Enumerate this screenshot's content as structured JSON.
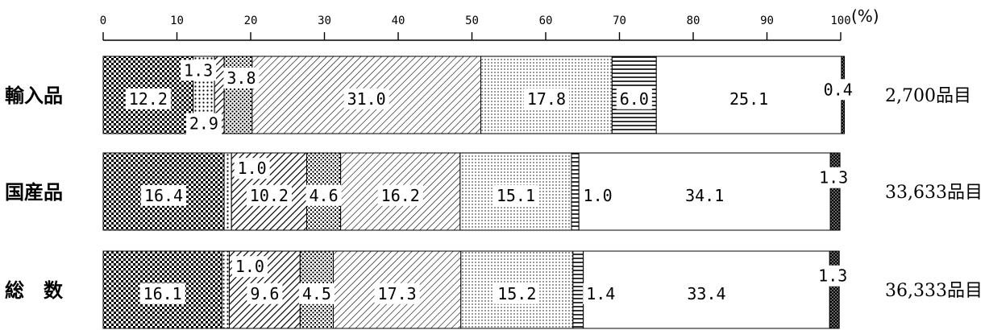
{
  "chart_data": {
    "type": "bar",
    "orientation": "horizontal",
    "stacked": true,
    "xlim": [
      0,
      100
    ],
    "x_ticks": [
      "0",
      "10",
      "20",
      "30",
      "40",
      "50",
      "60",
      "70",
      "80",
      "90",
      "100"
    ],
    "unit": "(%)",
    "categories": [
      "輸入品",
      "国産品",
      "総　数"
    ],
    "totals": [
      "2,700品目",
      "33,633品目",
      "36,333品目"
    ],
    "segments": [
      [
        12.2,
        2.9,
        1.3,
        3.8,
        31.0,
        17.8,
        6.0,
        25.1,
        0.4
      ],
      [
        16.4,
        1.0,
        10.2,
        4.6,
        16.2,
        15.1,
        1.0,
        34.1,
        1.3
      ],
      [
        16.1,
        1.0,
        9.6,
        4.5,
        17.3,
        15.2,
        1.4,
        33.4,
        1.3
      ]
    ],
    "labels": [
      [
        "12.2",
        "2.9",
        "1.3",
        "3.8",
        "31.0",
        "17.8",
        "6.0",
        "25.1",
        "0.4"
      ],
      [
        "16.4",
        "1.0",
        "10.2",
        "4.6",
        "16.2",
        "15.1",
        "1.0",
        "34.1",
        "1.3"
      ],
      [
        "16.1",
        "1.0",
        "9.6",
        "4.5",
        "17.3",
        "15.2",
        "1.4",
        "33.4",
        "1.3"
      ]
    ],
    "grid": false,
    "legend": "none"
  }
}
